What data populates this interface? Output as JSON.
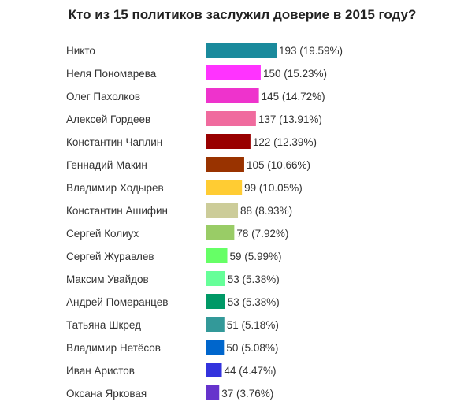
{
  "chart_data": {
    "type": "bar",
    "orientation": "horizontal",
    "title": "Кто из 15 политиков заслужил доверие в 2015 году?",
    "categories": [
      "Никто",
      "Неля Пономарева",
      "Олег Пахолков",
      "Алексей Гордеев",
      "Константин Чаплин",
      "Геннадий Макин",
      "Владимир Ходырев",
      "Константин Ашифин",
      "Сергей Колиух",
      "Сергей Журавлев",
      "Максим Увайдов",
      "Андрей Померанцев",
      "Татьяна Шкред",
      "Владимир Нетёсов",
      "Иван Аристов",
      "Оксана Ярковая"
    ],
    "values": [
      193,
      150,
      145,
      137,
      122,
      105,
      99,
      88,
      78,
      59,
      53,
      53,
      51,
      50,
      44,
      37
    ],
    "value_labels": [
      "193 (19.59%)",
      "150 (15.23%)",
      "145 (14.72%)",
      "137 (13.91%)",
      "122 (12.39%)",
      "105 (10.66%)",
      "99 (10.05%)",
      "88 (8.93%)",
      "78 (7.92%)",
      "59 (5.99%)",
      "53 (5.38%)",
      "53 (5.38%)",
      "51 (5.18%)",
      "50 (5.08%)",
      "44 (4.47%)",
      "37 (3.76%)"
    ],
    "colors": [
      "#1a8a9c",
      "#ff33ff",
      "#ee33cc",
      "#f06b9e",
      "#990000",
      "#993300",
      "#ffcc33",
      "#cccc99",
      "#99cc66",
      "#66ff66",
      "#66ff99",
      "#009966",
      "#339999",
      "#0066cc",
      "#3333dd",
      "#6633cc"
    ],
    "xlim": [
      0,
      193
    ],
    "grid": false,
    "legend": "none"
  }
}
